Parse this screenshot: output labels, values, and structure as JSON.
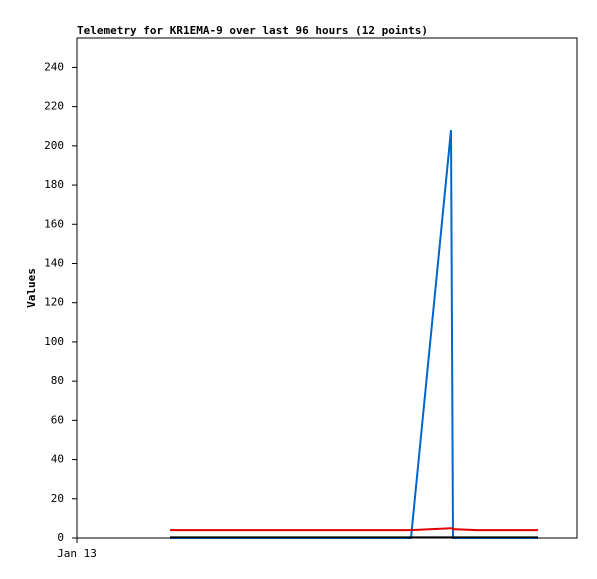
{
  "chart_data": {
    "type": "line",
    "title": "Telemetry for KR1EMA-9 over last 96 hours (12 points)",
    "y_label": "Values",
    "x": [
      18.6,
      30,
      40,
      50,
      60,
      66.8,
      74.8,
      75.0,
      75.2,
      80,
      86,
      92.2
    ],
    "xlim": [
      0,
      100
    ],
    "xticks": [
      {
        "value": 0,
        "label": "Jan 13"
      }
    ],
    "ylim": [
      0,
      255
    ],
    "yticks": [
      0,
      20,
      40,
      60,
      80,
      100,
      120,
      140,
      160,
      180,
      200,
      220,
      240
    ],
    "grid": false,
    "series": [
      {
        "color": "#0066cc",
        "values": [
          0,
          0,
          0,
          0,
          0,
          0,
          208,
          104,
          0,
          0,
          0,
          0
        ]
      },
      {
        "color": "#e00000",
        "values": [
          4,
          4,
          4,
          4,
          4,
          4,
          5,
          5,
          4.5,
          4,
          4,
          4
        ]
      },
      {
        "color": "#000000",
        "values": [
          0.3,
          0.3,
          0.3,
          0.3,
          0.3,
          0.3,
          0.3,
          0.3,
          0.3,
          0.3,
          0.3,
          0.3
        ]
      }
    ]
  }
}
